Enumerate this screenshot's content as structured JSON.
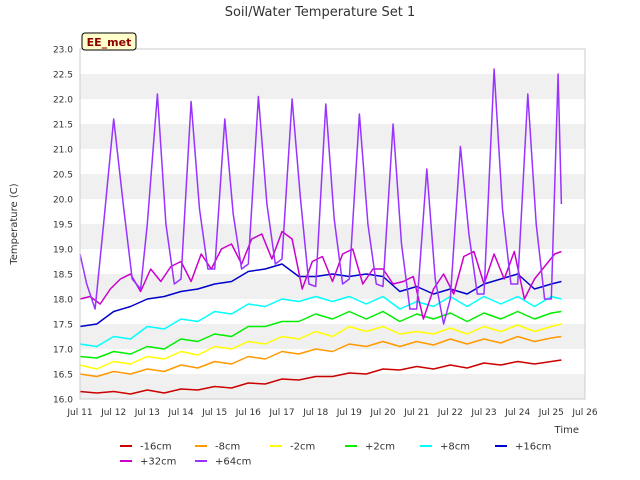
{
  "chart_data": {
    "type": "line",
    "title": "Soil/Water Temperature Set 1",
    "xlabel": "Time",
    "ylabel": "Temperature (C)",
    "station_label": "EE_met",
    "ylim": [
      16.0,
      23.0
    ],
    "xlim": [
      11,
      26
    ],
    "yticks": [
      "16.0",
      "16.5",
      "17.0",
      "17.5",
      "18.0",
      "18.5",
      "19.0",
      "19.5",
      "20.0",
      "20.5",
      "21.0",
      "21.5",
      "22.0",
      "22.5",
      "23.0"
    ],
    "xticks": [
      "Jul 11",
      "Jul 12",
      "Jul 13",
      "Jul 14",
      "Jul 15",
      "Jul 16",
      "Jul 17",
      "Jul 18",
      "Jul 19",
      "Jul 20",
      "Jul 21",
      "Jul 22",
      "Jul 23",
      "Jul 24",
      "Jul 25",
      "Jul 26"
    ],
    "grid": "horizontal bands",
    "legend_position": "bottom",
    "series": [
      {
        "name": "-16cm",
        "color": "#cc0000",
        "x": [
          11.0,
          11.5,
          12.0,
          12.5,
          13.0,
          13.5,
          14.0,
          14.5,
          15.0,
          15.5,
          16.0,
          16.5,
          17.0,
          17.5,
          18.0,
          18.5,
          19.0,
          19.5,
          20.0,
          20.5,
          21.0,
          21.5,
          22.0,
          22.5,
          23.0,
          23.5,
          24.0,
          24.5,
          25.0,
          25.3
        ],
        "values": [
          16.15,
          16.12,
          16.15,
          16.1,
          16.18,
          16.12,
          16.2,
          16.18,
          16.25,
          16.22,
          16.32,
          16.3,
          16.4,
          16.38,
          16.45,
          16.45,
          16.52,
          16.5,
          16.6,
          16.58,
          16.65,
          16.6,
          16.68,
          16.62,
          16.72,
          16.68,
          16.75,
          16.7,
          16.75,
          16.78
        ]
      },
      {
        "name": "-8cm",
        "color": "#ff9900",
        "x": [
          11.0,
          11.5,
          12.0,
          12.5,
          13.0,
          13.5,
          14.0,
          14.5,
          15.0,
          15.5,
          16.0,
          16.5,
          17.0,
          17.5,
          18.0,
          18.5,
          19.0,
          19.5,
          20.0,
          20.5,
          21.0,
          21.5,
          22.0,
          22.5,
          23.0,
          23.5,
          24.0,
          24.5,
          25.0,
          25.3
        ],
        "values": [
          16.5,
          16.45,
          16.55,
          16.5,
          16.6,
          16.55,
          16.68,
          16.62,
          16.75,
          16.7,
          16.85,
          16.8,
          16.95,
          16.9,
          17.0,
          16.95,
          17.1,
          17.05,
          17.15,
          17.05,
          17.15,
          17.08,
          17.2,
          17.1,
          17.2,
          17.12,
          17.25,
          17.15,
          17.22,
          17.25
        ]
      },
      {
        "name": "-2cm",
        "color": "#ffff00",
        "x": [
          11.0,
          11.5,
          12.0,
          12.5,
          13.0,
          13.5,
          14.0,
          14.5,
          15.0,
          15.5,
          16.0,
          16.5,
          17.0,
          17.5,
          18.0,
          18.5,
          19.0,
          19.5,
          20.0,
          20.5,
          21.0,
          21.5,
          22.0,
          22.5,
          23.0,
          23.5,
          24.0,
          24.5,
          25.0,
          25.3
        ],
        "values": [
          16.68,
          16.6,
          16.75,
          16.7,
          16.85,
          16.8,
          16.95,
          16.88,
          17.05,
          17.0,
          17.15,
          17.1,
          17.25,
          17.2,
          17.35,
          17.25,
          17.45,
          17.35,
          17.45,
          17.3,
          17.35,
          17.3,
          17.42,
          17.3,
          17.45,
          17.35,
          17.48,
          17.35,
          17.45,
          17.5
        ]
      },
      {
        "name": "+2cm",
        "color": "#00ee00",
        "x": [
          11.0,
          11.5,
          12.0,
          12.5,
          13.0,
          13.5,
          14.0,
          14.5,
          15.0,
          15.5,
          16.0,
          16.5,
          17.0,
          17.5,
          18.0,
          18.5,
          19.0,
          19.5,
          20.0,
          20.5,
          21.0,
          21.5,
          22.0,
          22.5,
          23.0,
          23.5,
          24.0,
          24.5,
          25.0,
          25.3
        ],
        "values": [
          16.85,
          16.82,
          16.95,
          16.9,
          17.05,
          17.0,
          17.2,
          17.15,
          17.3,
          17.25,
          17.45,
          17.45,
          17.55,
          17.55,
          17.7,
          17.6,
          17.75,
          17.6,
          17.75,
          17.55,
          17.7,
          17.6,
          17.72,
          17.55,
          17.72,
          17.6,
          17.75,
          17.6,
          17.72,
          17.75
        ]
      },
      {
        "name": "+8cm",
        "color": "#00ffff",
        "x": [
          11.0,
          11.5,
          12.0,
          12.5,
          13.0,
          13.5,
          14.0,
          14.5,
          15.0,
          15.5,
          16.0,
          16.5,
          17.0,
          17.5,
          18.0,
          18.5,
          19.0,
          19.5,
          20.0,
          20.5,
          21.0,
          21.5,
          22.0,
          22.5,
          23.0,
          23.5,
          24.0,
          24.5,
          25.0,
          25.3
        ],
        "values": [
          17.1,
          17.05,
          17.25,
          17.2,
          17.45,
          17.4,
          17.6,
          17.55,
          17.75,
          17.7,
          17.9,
          17.85,
          18.0,
          17.95,
          18.05,
          17.95,
          18.05,
          17.9,
          18.05,
          17.8,
          17.95,
          17.85,
          18.05,
          17.85,
          18.05,
          17.9,
          18.05,
          17.85,
          18.05,
          18.0
        ]
      },
      {
        "name": "+16cm",
        "color": "#0000cc",
        "x": [
          11.0,
          11.5,
          12.0,
          12.5,
          13.0,
          13.5,
          14.0,
          14.5,
          15.0,
          15.5,
          16.0,
          16.5,
          17.0,
          17.5,
          18.0,
          18.5,
          19.0,
          19.5,
          20.0,
          20.5,
          21.0,
          21.5,
          22.0,
          22.5,
          23.0,
          23.5,
          24.0,
          24.5,
          25.0,
          25.3
        ],
        "values": [
          17.45,
          17.5,
          17.75,
          17.85,
          18.0,
          18.05,
          18.15,
          18.2,
          18.3,
          18.35,
          18.55,
          18.6,
          18.7,
          18.45,
          18.45,
          18.5,
          18.45,
          18.5,
          18.45,
          18.15,
          18.25,
          18.1,
          18.2,
          18.1,
          18.3,
          18.4,
          18.5,
          18.2,
          18.3,
          18.35
        ]
      },
      {
        "name": "+32cm",
        "color": "#cc00cc",
        "x": [
          11.0,
          11.3,
          11.6,
          11.9,
          12.2,
          12.5,
          12.8,
          13.1,
          13.4,
          13.7,
          14.0,
          14.3,
          14.6,
          14.9,
          15.2,
          15.5,
          15.8,
          16.1,
          16.4,
          16.7,
          17.0,
          17.3,
          17.6,
          17.9,
          18.2,
          18.5,
          18.8,
          19.1,
          19.4,
          19.7,
          20.0,
          20.3,
          20.6,
          20.9,
          21.2,
          21.5,
          21.8,
          22.1,
          22.4,
          22.7,
          23.0,
          23.3,
          23.6,
          23.9,
          24.2,
          24.5,
          24.8,
          25.1,
          25.3
        ],
        "values": [
          18.0,
          18.05,
          17.9,
          18.2,
          18.4,
          18.5,
          18.15,
          18.6,
          18.35,
          18.65,
          18.75,
          18.35,
          18.9,
          18.6,
          19.0,
          19.1,
          18.7,
          19.2,
          19.3,
          18.8,
          19.35,
          19.2,
          18.2,
          18.75,
          18.85,
          18.35,
          18.9,
          19.0,
          18.3,
          18.6,
          18.6,
          18.3,
          18.35,
          18.45,
          17.6,
          18.2,
          18.5,
          18.1,
          18.85,
          18.95,
          18.3,
          18.9,
          18.4,
          18.95,
          18.0,
          18.4,
          18.65,
          18.9,
          18.95
        ]
      },
      {
        "name": "+64cm",
        "color": "#9933ff",
        "x": [
          11.0,
          11.2,
          11.45,
          11.7,
          12.0,
          12.3,
          12.55,
          12.8,
          13.0,
          13.3,
          13.55,
          13.8,
          14.0,
          14.3,
          14.55,
          14.8,
          15.0,
          15.3,
          15.55,
          15.8,
          16.0,
          16.3,
          16.55,
          16.8,
          17.0,
          17.3,
          17.55,
          17.8,
          18.0,
          18.3,
          18.55,
          18.8,
          19.0,
          19.3,
          19.55,
          19.8,
          20.0,
          20.3,
          20.55,
          20.8,
          21.0,
          21.3,
          21.55,
          21.8,
          22.0,
          22.3,
          22.55,
          22.8,
          23.0,
          23.3,
          23.55,
          23.8,
          24.0,
          24.3,
          24.55,
          24.8,
          25.0,
          25.2,
          25.3
        ],
        "values": [
          18.9,
          18.3,
          17.8,
          19.5,
          21.6,
          19.8,
          18.4,
          18.2,
          19.5,
          22.1,
          19.5,
          18.3,
          18.4,
          21.95,
          19.8,
          18.6,
          18.6,
          21.6,
          19.7,
          18.6,
          18.7,
          22.05,
          19.9,
          18.7,
          18.8,
          22.0,
          20.0,
          18.3,
          18.25,
          21.9,
          19.6,
          18.3,
          18.4,
          21.7,
          19.5,
          18.3,
          18.25,
          21.5,
          19.1,
          17.8,
          17.8,
          20.6,
          18.4,
          17.5,
          18.0,
          21.05,
          19.3,
          18.1,
          18.1,
          22.6,
          19.8,
          18.3,
          18.3,
          22.1,
          19.5,
          18.0,
          18.0,
          22.5,
          19.9
        ]
      }
    ]
  }
}
